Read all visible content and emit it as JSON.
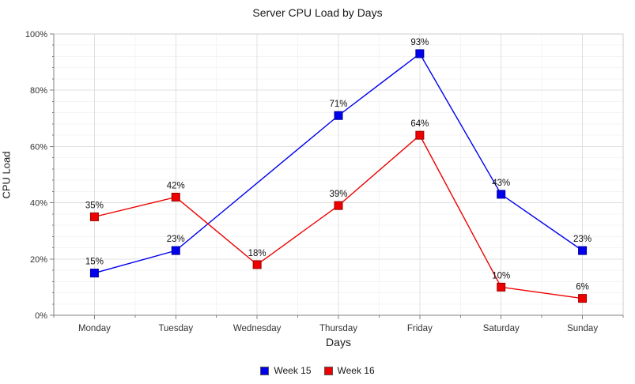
{
  "chart_data": {
    "type": "line",
    "title": "Server CPU Load by Days",
    "xlabel": "Days",
    "ylabel": "CPU Load",
    "ylim": [
      0,
      100
    ],
    "y_major_step": 20,
    "y_minor_step": 4,
    "y_tick_suffix": "%",
    "point_label_suffix": "%",
    "grid": true,
    "legend_position": "bottom",
    "categories": [
      "Monday",
      "Tuesday",
      "Wednesday",
      "Thursday",
      "Friday",
      "Saturday",
      "Sunday"
    ],
    "series": [
      {
        "name": "Week 15",
        "color": "#0000ee",
        "marker_border": "#000099",
        "values": [
          15,
          23,
          null,
          71,
          93,
          43,
          23
        ]
      },
      {
        "name": "Week 16",
        "color": "#ee0000",
        "marker_border": "#990000",
        "values": [
          35,
          42,
          18,
          39,
          64,
          10,
          6
        ]
      }
    ],
    "colors": {
      "grid_major": "#e0e0e0",
      "grid_minor": "#f4f4f4",
      "axis": "#808080",
      "plot_border": "#cfcfcf",
      "tick_label": "#333333",
      "data_label": "#111111"
    }
  }
}
